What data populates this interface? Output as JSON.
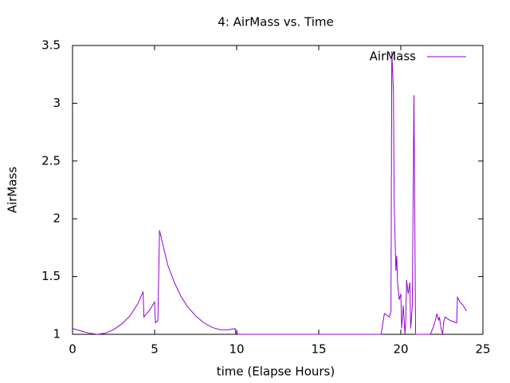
{
  "chart_data": {
    "type": "line",
    "title": "4: AirMass vs. Time",
    "x_label": "time (Elapse Hours)",
    "y_label": "AirMass",
    "x": [
      0,
      0.5,
      1,
      1.5,
      2,
      2.5,
      3,
      3.5,
      4,
      4.3,
      4.35,
      4.7,
      5.0,
      5.05,
      5.2,
      5.3,
      5.5,
      5.8,
      6.2,
      6.6,
      7,
      7.5,
      8,
      8.5,
      9,
      9.5,
      9.9,
      9.95,
      10.0,
      10.05,
      18.8,
      19.0,
      19.3,
      19.4,
      19.45,
      19.55,
      19.6,
      19.7,
      19.75,
      19.8,
      19.9,
      20.0,
      20.05,
      20.15,
      20.25,
      20.3,
      20.35,
      20.45,
      20.55,
      20.6,
      20.7,
      20.8,
      20.9,
      21.0,
      21.8,
      22.0,
      22.1,
      22.2,
      22.3,
      22.35,
      22.45,
      22.55,
      22.6,
      22.7,
      23.0,
      23.4,
      23.45,
      23.6,
      23.8,
      24.0
    ],
    "series": [
      {
        "name": "AirMass",
        "color": "#9400d3",
        "values": [
          1.05,
          1.03,
          1.01,
          1.0,
          1.01,
          1.04,
          1.09,
          1.16,
          1.27,
          1.37,
          1.15,
          1.21,
          1.28,
          1.1,
          1.12,
          1.9,
          1.78,
          1.6,
          1.45,
          1.33,
          1.24,
          1.16,
          1.1,
          1.06,
          1.04,
          1.04,
          1.05,
          1.0,
          1.03,
          1.0,
          1.0,
          1.18,
          1.15,
          1.2,
          3.45,
          3.1,
          2.1,
          1.55,
          1.68,
          1.45,
          1.3,
          1.35,
          1.05,
          1.25,
          1.0,
          1.12,
          1.47,
          1.35,
          1.45,
          1.05,
          1.25,
          3.07,
          1.0,
          1.0,
          1.0,
          1.07,
          1.12,
          1.18,
          1.12,
          1.15,
          1.05,
          1.0,
          1.1,
          1.15,
          1.12,
          1.1,
          1.32,
          1.28,
          1.25,
          1.2
        ]
      }
    ],
    "xlim": [
      0,
      25
    ],
    "xticks": [
      0,
      5,
      10,
      15,
      20,
      25
    ],
    "ylim": [
      1,
      3.5
    ],
    "yticks": [
      1,
      1.5,
      2,
      2.5,
      3,
      3.5
    ],
    "legend": "top-right"
  }
}
